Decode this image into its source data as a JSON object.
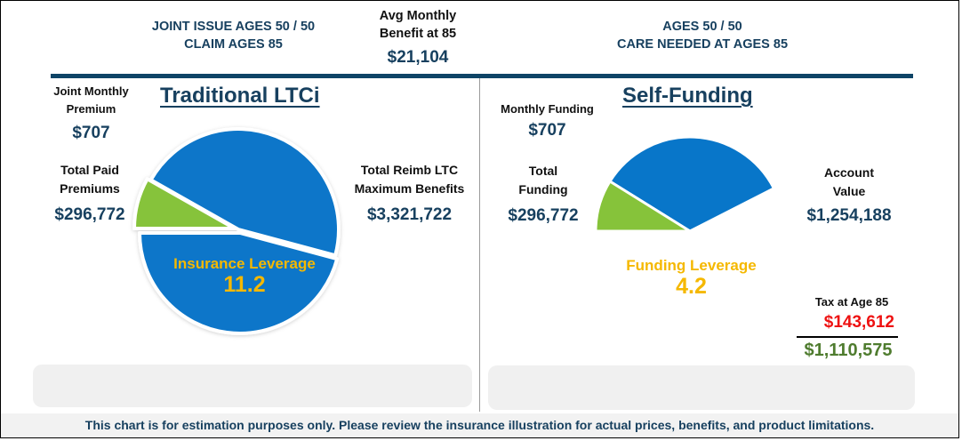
{
  "header": {
    "left": {
      "line1": "JOINT ISSUE AGES 50 / 50",
      "line2": "CLAIM AGES 85"
    },
    "middle": {
      "line1": "Avg Monthly",
      "line2": "Benefit at 85",
      "value": "$21,104"
    },
    "right": {
      "line1": "AGES 50 / 50",
      "line2": "CARE NEEDED AT AGES 85"
    }
  },
  "traditional": {
    "title": "Traditional LTCi",
    "monthly_premium_label_1": "Joint Monthly",
    "monthly_premium_label_2": "Premium",
    "monthly_premium_value": "$707",
    "total_paid_label_1": "Total Paid",
    "total_paid_label_2": "Premiums",
    "total_paid_value": "$296,772",
    "max_benefits_label_1": "Total Reimb LTC",
    "max_benefits_label_2": "Maximum Benefits",
    "max_benefits_value": "$3,321,722",
    "leverage_label": "Insurance Leverage",
    "leverage_value": "11.2"
  },
  "self_funding": {
    "title": "Self-Funding",
    "monthly_label": "Monthly Funding",
    "monthly_value": "$707",
    "total_label_1": "Total",
    "total_label_2": "Funding",
    "total_value": "$296,772",
    "account_label_1": "Account",
    "account_label_2": "Value",
    "account_value": "$1,254,188",
    "leverage_label": "Funding Leverage",
    "leverage_value": "4.2",
    "tax_label": "Tax at Age 85",
    "tax_value": "$143,612",
    "net_value": "$1,110,575"
  },
  "footer": {
    "disclaimer": "This chart is for estimation purposes only.  Please review the insurance illustration for actual prices, benefits, and product limitations."
  },
  "colors": {
    "navy": "#17405f",
    "rule": "#0e4466",
    "blue": "#0876c9",
    "green": "#86c33a",
    "gold": "#f5b800",
    "red": "#ee1111",
    "dark_green": "#4f7c2f"
  },
  "chart_data": [
    {
      "type": "pie",
      "title": "Traditional LTCi",
      "slices": [
        {
          "name": "Total Paid Premiums",
          "value": 296772,
          "color": "#86c33a"
        },
        {
          "name": "Total Reimb LTC Maximum Benefits",
          "value": 3321722,
          "color": "#0876c9"
        }
      ],
      "leverage": 11.2,
      "note": "benefits slice shown split into two exploded wedges"
    },
    {
      "type": "pie",
      "title": "Self-Funding",
      "slices": [
        {
          "name": "Total Funding",
          "value": 296772,
          "color": "#86c33a"
        },
        {
          "name": "Account Value",
          "value": 1254188,
          "color": "#0876c9"
        }
      ],
      "leverage": 4.2,
      "note": "partial (fan) pie, upper half only"
    }
  ]
}
